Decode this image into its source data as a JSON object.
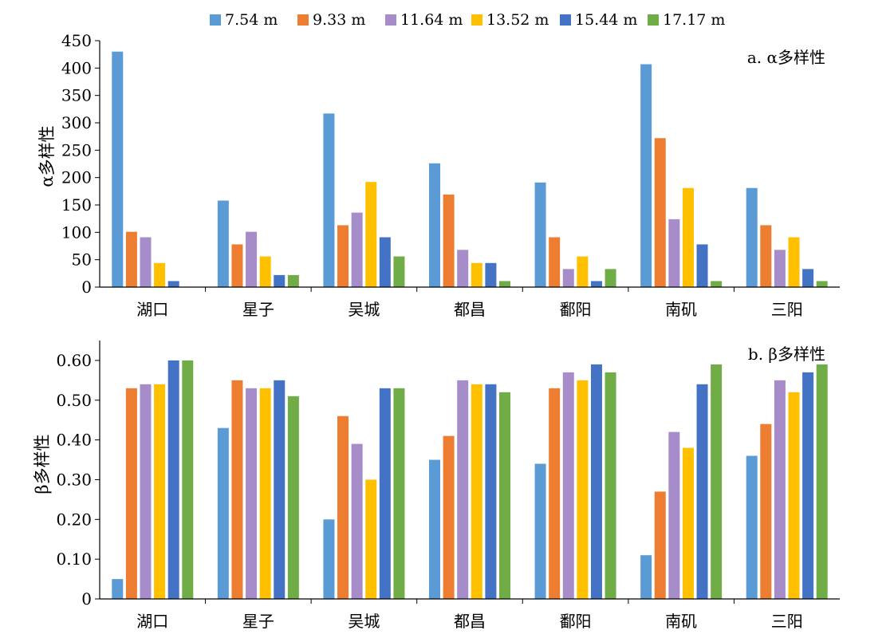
{
  "legend": [
    {
      "label": "7.54 m",
      "color": "#5B9BD5"
    },
    {
      "label": "9.33 m",
      "color": "#ED7D31"
    },
    {
      "label": "11.64 m",
      "color": "#A68CC8"
    },
    {
      "label": "13.52 m",
      "color": "#FFC000"
    },
    {
      "label": "15.44 m",
      "color": "#4472C4"
    },
    {
      "label": "17.17 m",
      "color": "#70AD47"
    }
  ],
  "chart_data": [
    {
      "type": "bar",
      "panel_label": "a. α多样性",
      "ylabel": "α多样性",
      "ylim": [
        0,
        450
      ],
      "yticks": [
        "0",
        "50",
        "100",
        "150",
        "200",
        "250",
        "300",
        "350",
        "400",
        "450"
      ],
      "ytick_values": [
        0,
        50,
        100,
        150,
        200,
        250,
        300,
        350,
        400,
        450
      ],
      "categories": [
        "湖口",
        "星子",
        "吴城",
        "都昌",
        "鄱阳",
        "南矶",
        "三阳"
      ],
      "series": [
        {
          "name": "7.54 m",
          "values": [
            430,
            158,
            317,
            226,
            191,
            407,
            181
          ]
        },
        {
          "name": "9.33 m",
          "values": [
            101,
            78,
            113,
            169,
            91,
            272,
            113
          ]
        },
        {
          "name": "11.64 m",
          "values": [
            91,
            101,
            136,
            68,
            33,
            124,
            68
          ]
        },
        {
          "name": "13.52 m",
          "values": [
            44,
            56,
            192,
            44,
            56,
            181,
            91
          ]
        },
        {
          "name": "15.44 m",
          "values": [
            11,
            22,
            91,
            44,
            11,
            78,
            33
          ]
        },
        {
          "name": "17.17 m",
          "values": [
            0,
            22,
            56,
            11,
            33,
            11,
            11
          ]
        }
      ],
      "grid": false,
      "legend_position": "top"
    },
    {
      "type": "bar",
      "panel_label": "b. β多样性",
      "ylabel": "β多样性",
      "ylim": [
        0,
        0.65
      ],
      "yticks": [
        "0",
        "0.10",
        "0.20",
        "0.30",
        "0.40",
        "0.50",
        "0.60"
      ],
      "ytick_values": [
        0,
        0.1,
        0.2,
        0.3,
        0.4,
        0.5,
        0.6
      ],
      "categories": [
        "湖口",
        "星子",
        "吴城",
        "都昌",
        "鄱阳",
        "南矶",
        "三阳"
      ],
      "series": [
        {
          "name": "7.54 m",
          "values": [
            0.05,
            0.43,
            0.2,
            0.35,
            0.34,
            0.11,
            0.36
          ]
        },
        {
          "name": "9.33 m",
          "values": [
            0.53,
            0.55,
            0.46,
            0.41,
            0.53,
            0.27,
            0.44
          ]
        },
        {
          "name": "11.64 m",
          "values": [
            0.54,
            0.53,
            0.39,
            0.55,
            0.57,
            0.42,
            0.55
          ]
        },
        {
          "name": "13.52 m",
          "values": [
            0.54,
            0.53,
            0.3,
            0.54,
            0.55,
            0.38,
            0.52
          ]
        },
        {
          "name": "15.44 m",
          "values": [
            0.6,
            0.55,
            0.53,
            0.54,
            0.59,
            0.54,
            0.57
          ]
        },
        {
          "name": "17.17 m",
          "values": [
            0.6,
            0.51,
            0.53,
            0.52,
            0.57,
            0.59,
            0.59
          ]
        }
      ],
      "grid": false,
      "legend_position": "top"
    }
  ]
}
